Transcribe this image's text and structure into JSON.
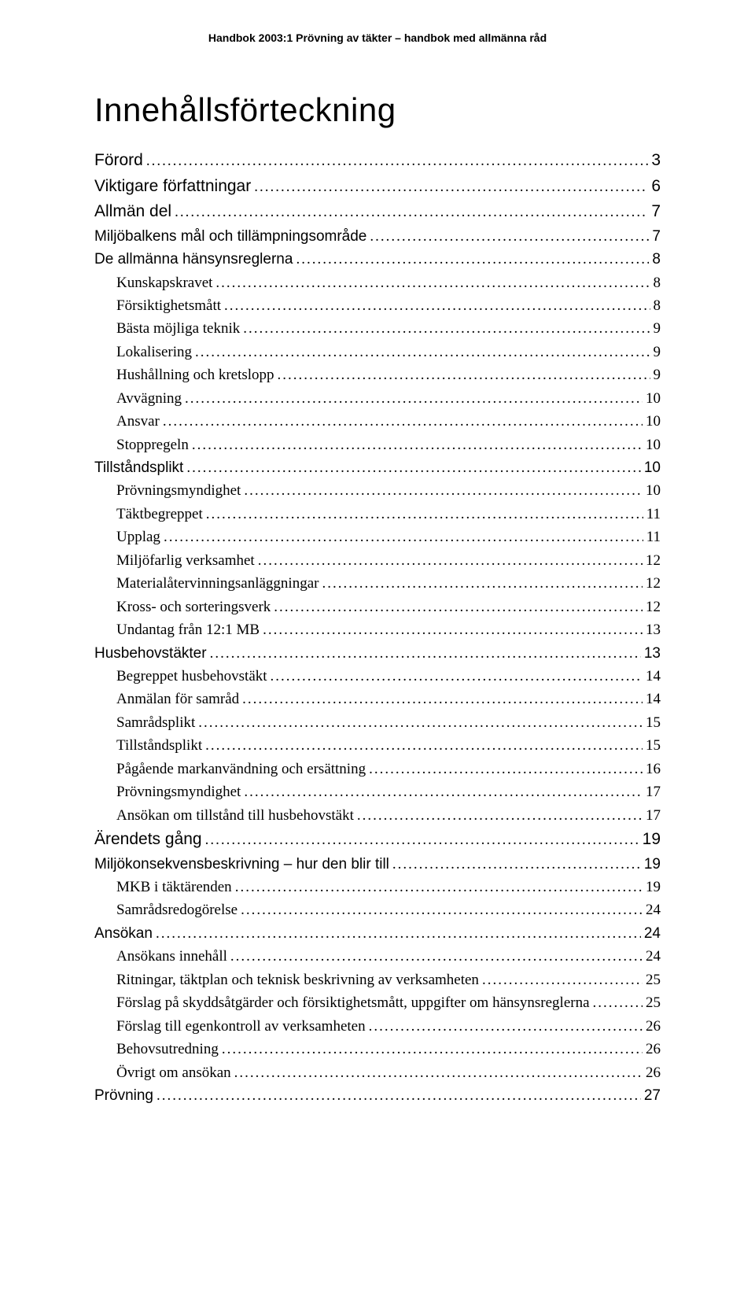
{
  "header": "Handbok 2003:1 Prövning av täkter – handbok med allmänna råd",
  "title": "Innehållsförteckning",
  "toc": [
    {
      "label": "Förord",
      "page": "3",
      "level": 0,
      "style": "sans-big"
    },
    {
      "label": "Viktigare författningar",
      "page": "6",
      "level": 0,
      "style": "sans-big"
    },
    {
      "label": "Allmän del",
      "page": "7",
      "level": 0,
      "style": "sans-big"
    },
    {
      "label": "Miljöbalkens mål och tillämpningsområde",
      "page": "7",
      "level": 1,
      "style": "sans"
    },
    {
      "label": "De allmänna hänsynsreglerna",
      "page": "8",
      "level": 1,
      "style": "sans"
    },
    {
      "label": "Kunskapskravet",
      "page": "8",
      "level": 2,
      "style": "serif"
    },
    {
      "label": "Försiktighetsmått",
      "page": "8",
      "level": 2,
      "style": "serif"
    },
    {
      "label": "Bästa möjliga teknik",
      "page": "9",
      "level": 2,
      "style": "serif"
    },
    {
      "label": "Lokalisering",
      "page": "9",
      "level": 2,
      "style": "serif"
    },
    {
      "label": "Hushållning och kretslopp",
      "page": "9",
      "level": 2,
      "style": "serif"
    },
    {
      "label": "Avvägning",
      "page": "10",
      "level": 2,
      "style": "serif"
    },
    {
      "label": "Ansvar",
      "page": "10",
      "level": 2,
      "style": "serif"
    },
    {
      "label": "Stoppregeln",
      "page": "10",
      "level": 2,
      "style": "serif"
    },
    {
      "label": "Tillståndsplikt",
      "page": "10",
      "level": 1,
      "style": "sans"
    },
    {
      "label": "Prövningsmyndighet",
      "page": "10",
      "level": 2,
      "style": "serif"
    },
    {
      "label": "Täktbegreppet",
      "page": "11",
      "level": 2,
      "style": "serif"
    },
    {
      "label": "Upplag",
      "page": "11",
      "level": 2,
      "style": "serif"
    },
    {
      "label": "Miljöfarlig verksamhet",
      "page": "12",
      "level": 2,
      "style": "serif"
    },
    {
      "label": "Materialåtervinningsanläggningar",
      "page": "12",
      "level": 2,
      "style": "serif"
    },
    {
      "label": "Kross- och sorteringsverk",
      "page": "12",
      "level": 2,
      "style": "serif"
    },
    {
      "label": "Undantag från 12:1 MB",
      "page": "13",
      "level": 2,
      "style": "serif"
    },
    {
      "label": "Husbehovstäkter",
      "page": "13",
      "level": 1,
      "style": "sans"
    },
    {
      "label": "Begreppet husbehovstäkt",
      "page": "14",
      "level": 2,
      "style": "serif"
    },
    {
      "label": "Anmälan för samråd",
      "page": "14",
      "level": 2,
      "style": "serif"
    },
    {
      "label": "Samrådsplikt",
      "page": "15",
      "level": 2,
      "style": "serif"
    },
    {
      "label": "Tillståndsplikt",
      "page": "15",
      "level": 2,
      "style": "serif"
    },
    {
      "label": "Pågående markanvändning och ersättning",
      "page": "16",
      "level": 2,
      "style": "serif"
    },
    {
      "label": "Prövningsmyndighet",
      "page": "17",
      "level": 2,
      "style": "serif"
    },
    {
      "label": "Ansökan om tillstånd till husbehovstäkt",
      "page": "17",
      "level": 2,
      "style": "serif"
    },
    {
      "label": "Ärendets gång",
      "page": "19",
      "level": 0,
      "style": "sans-big"
    },
    {
      "label": "Miljökonsekvensbeskrivning – hur den blir till",
      "page": "19",
      "level": 1,
      "style": "sans"
    },
    {
      "label": "MKB i täktärenden",
      "page": "19",
      "level": 2,
      "style": "serif"
    },
    {
      "label": "Samrådsredogörelse",
      "page": "24",
      "level": 2,
      "style": "serif"
    },
    {
      "label": "Ansökan",
      "page": "24",
      "level": 1,
      "style": "sans"
    },
    {
      "label": "Ansökans innehåll",
      "page": "24",
      "level": 2,
      "style": "serif"
    },
    {
      "label": "Ritningar, täktplan och teknisk beskrivning av verksamheten",
      "page": "25",
      "level": 2,
      "style": "serif"
    },
    {
      "label": "Förslag på skyddsåtgärder och försiktighetsmått, uppgifter om hänsynsreglerna",
      "page": "25",
      "level": 2,
      "style": "serif"
    },
    {
      "label": "Förslag till egenkontroll av verksamheten",
      "page": "26",
      "level": 2,
      "style": "serif"
    },
    {
      "label": "Behovsutredning",
      "page": "26",
      "level": 2,
      "style": "serif"
    },
    {
      "label": "Övrigt om ansökan",
      "page": "26",
      "level": 2,
      "style": "serif"
    },
    {
      "label": "Prövning",
      "page": "27",
      "level": 1,
      "style": "sans"
    }
  ]
}
